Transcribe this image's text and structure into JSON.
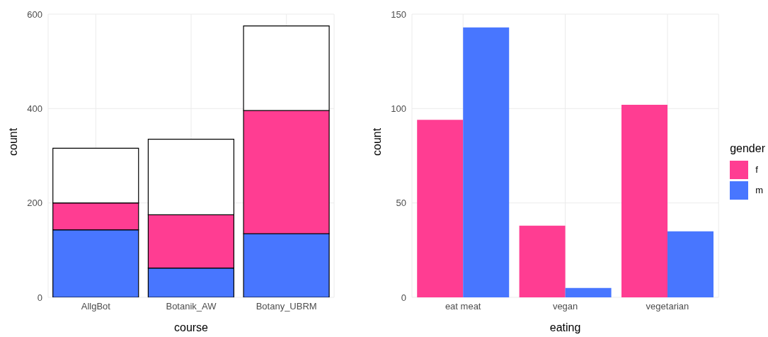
{
  "chart_data": [
    {
      "type": "bar",
      "stacked": true,
      "xlabel": "course",
      "ylabel": "count",
      "categories": [
        "AllgBot",
        "Botanik_AW",
        "Botany_UBRM"
      ],
      "ylim": [
        0,
        600
      ],
      "yticks": [
        0,
        200,
        400,
        600
      ],
      "grid": true,
      "legend": false,
      "series": [
        {
          "color": "#4876ff",
          "values": [
            143,
            62,
            135
          ]
        },
        {
          "color": "#ff3d92",
          "values": [
            57,
            113,
            261
          ]
        },
        {
          "color": "#ffffff",
          "values": [
            116,
            160,
            179
          ]
        }
      ]
    },
    {
      "type": "bar",
      "xlabel": "eating",
      "ylabel": "count",
      "legend_title": "gender",
      "categories": [
        "eat meat",
        "vegan",
        "vegetarian"
      ],
      "ylim": [
        0,
        150
      ],
      "yticks": [
        0,
        50,
        100,
        150
      ],
      "grid": true,
      "legend": "right",
      "series": [
        {
          "name": "f",
          "color": "#ff3d92",
          "values": [
            94,
            38,
            102
          ]
        },
        {
          "name": "m",
          "color": "#4876ff",
          "values": [
            143,
            5,
            35
          ]
        }
      ]
    }
  ]
}
